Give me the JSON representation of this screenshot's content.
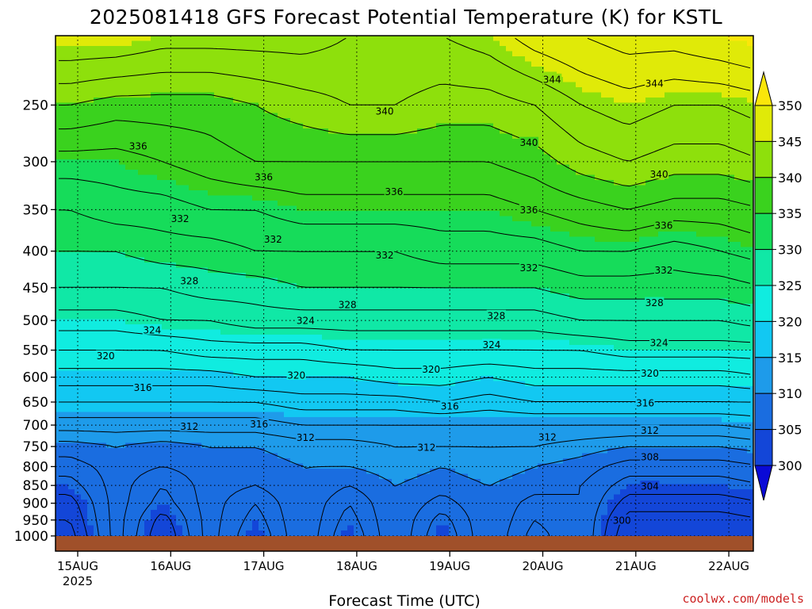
{
  "chart_data": {
    "type": "heatmap",
    "title": "2025081418 GFS Forecast Potential Temperature (K) for KSTL",
    "xlabel": "Forecast Time (UTC)",
    "ylabel": "",
    "x_ticks": [
      "15AUG",
      "16AUG",
      "17AUG",
      "18AUG",
      "19AUG",
      "20AUG",
      "21AUG",
      "22AUG"
    ],
    "x_year_label": "2025",
    "y_ticks": [
      250,
      300,
      350,
      400,
      450,
      500,
      550,
      600,
      650,
      700,
      750,
      800,
      850,
      900,
      950,
      1000
    ],
    "y_scale": "log-pressure (inverted)",
    "ylim": [
      200,
      1050
    ],
    "colorbar": {
      "ticks": [
        300,
        305,
        310,
        315,
        320,
        325,
        330,
        335,
        340,
        345,
        350
      ],
      "colors": [
        "#0a0ad6",
        "#1346d8",
        "#1a6de0",
        "#1e9bea",
        "#12c8f2",
        "#10ece0",
        "#10e8a6",
        "#16dc5a",
        "#3ad21e",
        "#8ee00c",
        "#e0ea08",
        "#fbe60a"
      ],
      "extend": "both"
    },
    "surface_color": "#a0502a",
    "pressure_levels": [
      200,
      250,
      300,
      350,
      400,
      450,
      500,
      550,
      600,
      650,
      700,
      750,
      800,
      850,
      900,
      950,
      1000
    ],
    "time_hours": [
      0,
      12,
      24,
      36,
      48,
      60,
      72,
      84,
      96,
      108,
      120,
      132,
      144,
      156,
      168,
      180
    ],
    "theta_grid": [
      [
        346,
        346,
        345,
        345,
        345,
        345,
        344,
        344,
        344,
        345,
        347,
        348,
        349,
        349,
        350,
        351
      ],
      [
        340,
        339,
        339,
        339,
        340,
        341,
        342,
        342,
        341,
        341,
        342,
        344,
        345,
        344,
        344,
        345
      ],
      [
        335,
        335,
        336,
        337,
        338,
        338,
        338,
        338,
        338,
        338,
        339,
        341,
        342,
        341,
        341,
        342
      ],
      [
        332,
        333,
        333,
        334,
        334,
        335,
        335,
        335,
        335,
        335,
        336,
        337,
        338,
        337,
        337,
        338
      ],
      [
        330,
        330,
        331,
        331,
        332,
        332,
        332,
        332,
        333,
        333,
        333,
        334,
        334,
        333,
        334,
        335
      ],
      [
        328,
        328,
        328,
        329,
        329,
        330,
        330,
        330,
        330,
        330,
        330,
        331,
        331,
        331,
        331,
        332
      ],
      [
        325,
        325,
        326,
        326,
        327,
        327,
        327,
        327,
        327,
        327,
        327,
        328,
        328,
        328,
        328,
        329
      ],
      [
        322,
        322,
        322,
        323,
        323,
        323,
        324,
        324,
        324,
        324,
        324,
        324,
        325,
        325,
        325,
        325
      ],
      [
        319,
        319,
        319,
        319,
        320,
        320,
        320,
        321,
        321,
        320,
        321,
        321,
        321,
        321,
        321,
        322
      ],
      [
        316,
        316,
        316,
        316,
        316,
        317,
        317,
        317,
        318,
        317,
        318,
        318,
        318,
        318,
        318,
        318
      ],
      [
        313,
        313,
        313,
        313,
        313,
        314,
        314,
        314,
        314,
        314,
        314,
        314,
        314,
        314,
        314,
        315
      ],
      [
        309,
        310,
        309,
        310,
        310,
        311,
        311,
        312,
        312,
        312,
        312,
        311,
        310,
        310,
        310,
        311
      ],
      [
        307,
        309,
        308,
        309,
        309,
        310,
        310,
        311,
        310,
        311,
        310,
        309,
        307,
        307,
        307,
        308
      ],
      [
        305,
        309,
        306,
        309,
        308,
        310,
        308,
        310,
        309,
        310,
        309,
        308,
        305,
        305,
        305,
        306
      ],
      [
        303,
        309,
        305,
        309,
        306,
        310,
        306,
        310,
        307,
        310,
        307,
        308,
        303,
        303,
        303,
        304
      ],
      [
        302,
        309,
        303,
        309,
        305,
        310,
        305,
        310,
        305,
        310,
        306,
        308,
        301,
        301,
        301,
        302
      ],
      [
        301,
        309,
        302,
        309,
        304,
        310,
        304,
        310,
        304,
        310,
        305,
        308,
        300,
        300,
        300,
        301
      ]
    ],
    "contour_levels": [
      300,
      302,
      304,
      306,
      308,
      310,
      312,
      314,
      316,
      318,
      320,
      322,
      324,
      326,
      328,
      330,
      332,
      334,
      336,
      338,
      340,
      342,
      344,
      346,
      348
    ],
    "contour_labels": [
      {
        "text": "344",
        "x_day": 5.1,
        "p": 230
      },
      {
        "text": "344",
        "x_day": 6.2,
        "p": 233
      },
      {
        "text": "340",
        "x_day": 3.3,
        "p": 255
      },
      {
        "text": "340",
        "x_day": 4.85,
        "p": 282
      },
      {
        "text": "340",
        "x_day": 6.25,
        "p": 312
      },
      {
        "text": "336",
        "x_day": 0.65,
        "p": 285
      },
      {
        "text": "336",
        "x_day": 2.0,
        "p": 315
      },
      {
        "text": "336",
        "x_day": 3.4,
        "p": 330
      },
      {
        "text": "336",
        "x_day": 4.85,
        "p": 350
      },
      {
        "text": "336",
        "x_day": 6.3,
        "p": 368
      },
      {
        "text": "332",
        "x_day": 1.1,
        "p": 360
      },
      {
        "text": "332",
        "x_day": 2.1,
        "p": 385
      },
      {
        "text": "332",
        "x_day": 3.3,
        "p": 405
      },
      {
        "text": "332",
        "x_day": 4.85,
        "p": 422
      },
      {
        "text": "332",
        "x_day": 6.3,
        "p": 425
      },
      {
        "text": "328",
        "x_day": 1.2,
        "p": 440
      },
      {
        "text": "328",
        "x_day": 2.9,
        "p": 475
      },
      {
        "text": "328",
        "x_day": 4.5,
        "p": 492
      },
      {
        "text": "328",
        "x_day": 6.2,
        "p": 472
      },
      {
        "text": "324",
        "x_day": 0.8,
        "p": 515
      },
      {
        "text": "324",
        "x_day": 2.45,
        "p": 500
      },
      {
        "text": "324",
        "x_day": 4.45,
        "p": 540
      },
      {
        "text": "324",
        "x_day": 6.25,
        "p": 537
      },
      {
        "text": "320",
        "x_day": 0.3,
        "p": 560
      },
      {
        "text": "320",
        "x_day": 2.35,
        "p": 596
      },
      {
        "text": "320",
        "x_day": 3.8,
        "p": 585
      },
      {
        "text": "320",
        "x_day": 6.15,
        "p": 592
      },
      {
        "text": "316",
        "x_day": 0.7,
        "p": 620
      },
      {
        "text": "316",
        "x_day": 1.95,
        "p": 697
      },
      {
        "text": "316",
        "x_day": 4.0,
        "p": 658
      },
      {
        "text": "316",
        "x_day": 6.1,
        "p": 652
      },
      {
        "text": "312",
        "x_day": 1.2,
        "p": 703
      },
      {
        "text": "312",
        "x_day": 2.45,
        "p": 728
      },
      {
        "text": "312",
        "x_day": 3.75,
        "p": 752
      },
      {
        "text": "312",
        "x_day": 5.05,
        "p": 727
      },
      {
        "text": "312",
        "x_day": 6.15,
        "p": 712
      },
      {
        "text": "308",
        "x_day": 6.15,
        "p": 775
      },
      {
        "text": "304",
        "x_day": 6.15,
        "p": 852
      },
      {
        "text": "300",
        "x_day": 5.85,
        "p": 950
      }
    ]
  },
  "credit": "coolwx.com/models"
}
